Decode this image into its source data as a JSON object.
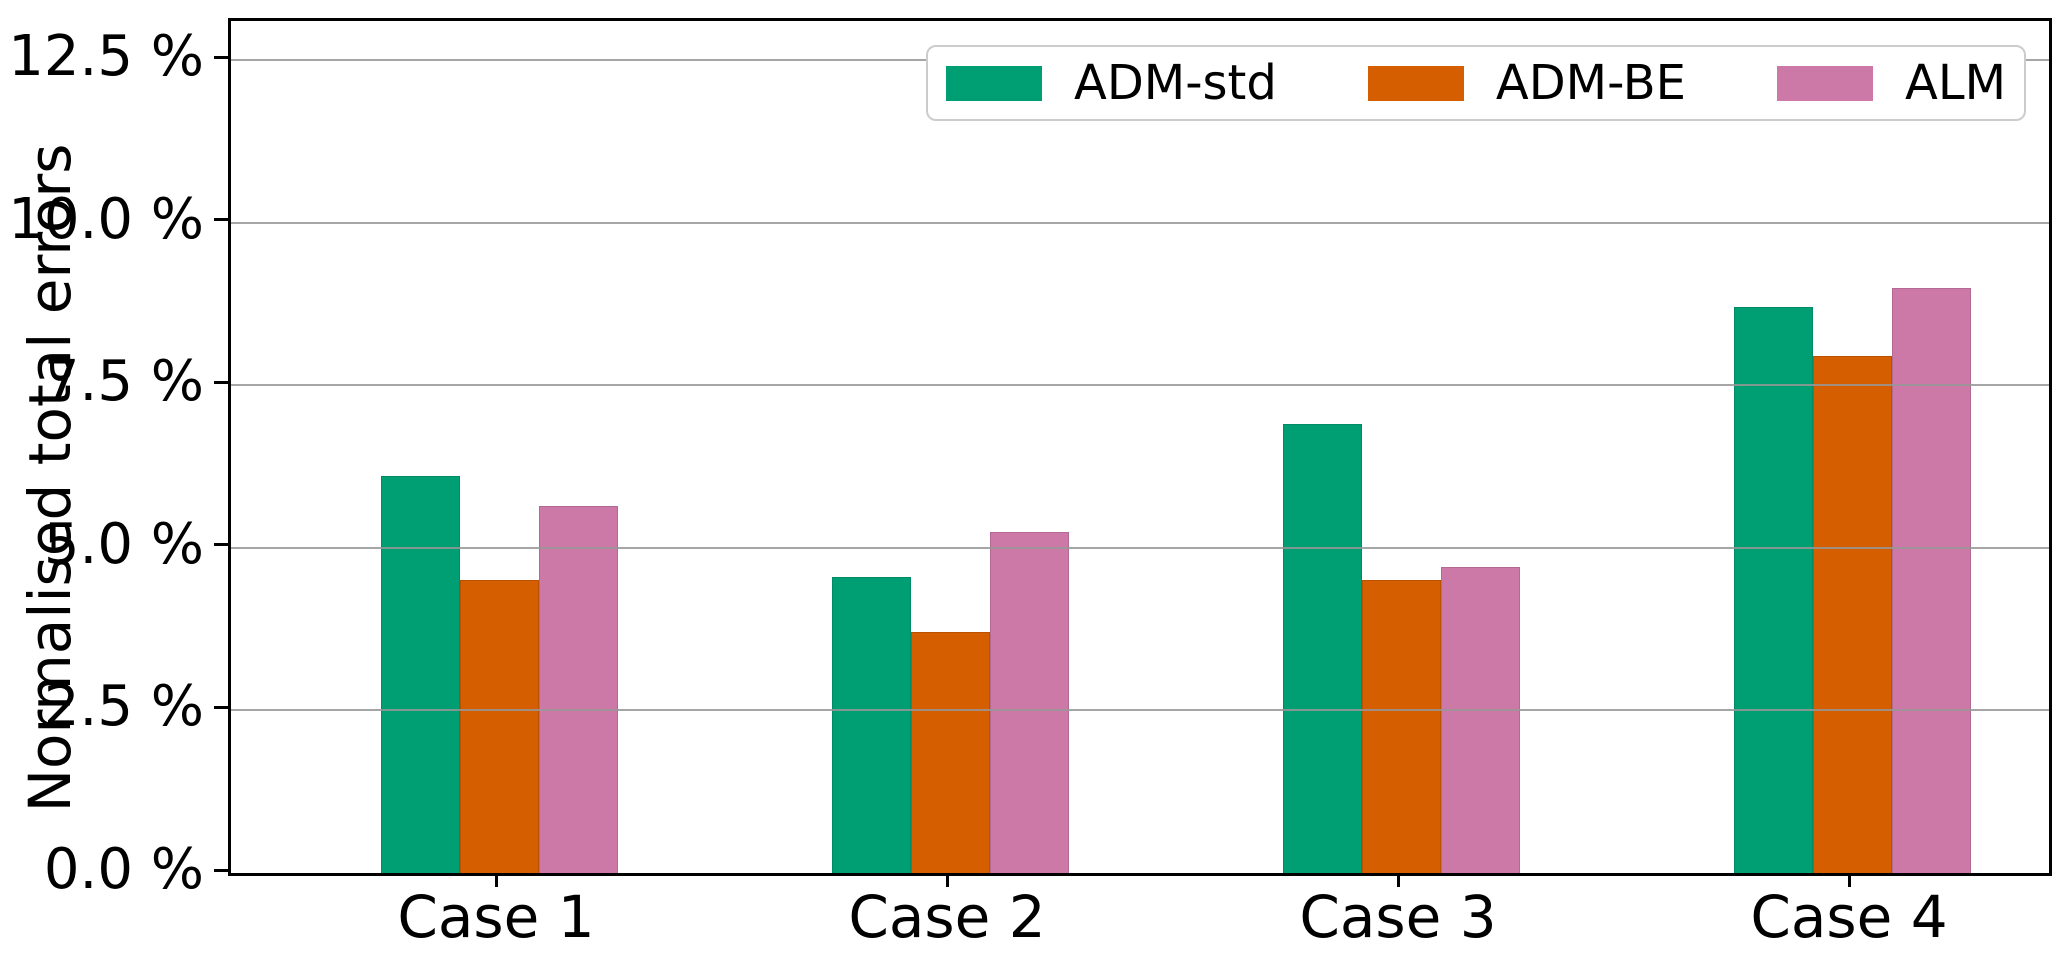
{
  "chart_data": {
    "type": "bar",
    "title": "",
    "ylabel": "Normalised total errors",
    "xlabel": "",
    "categories": [
      "Case 1",
      "Case 2",
      "Case 3",
      "Case 4"
    ],
    "series": [
      {
        "name": "ADM-std",
        "color": "#009E73",
        "values": [
          6.1,
          4.55,
          6.9,
          8.7
        ]
      },
      {
        "name": "ADM-BE",
        "color": "#D55E00",
        "values": [
          4.5,
          3.7,
          4.5,
          7.95
        ]
      },
      {
        "name": "ALM",
        "color": "#CC79A7",
        "values": [
          5.65,
          5.25,
          4.7,
          9.0
        ]
      }
    ],
    "ylim": [
      0,
      13.1
    ],
    "yticks": [
      0,
      2.5,
      5.0,
      7.5,
      10.0,
      12.5
    ],
    "ytick_labels": [
      "0.0 %",
      "2.5 %",
      "5.0 %",
      "7.5 %",
      "10.0 %",
      "12.5 %"
    ],
    "grid": true,
    "grid_color": "#969696",
    "legend_position": "upper right",
    "legend_entries": [
      "ADM-std",
      "ADM-BE",
      "ALM"
    ]
  }
}
